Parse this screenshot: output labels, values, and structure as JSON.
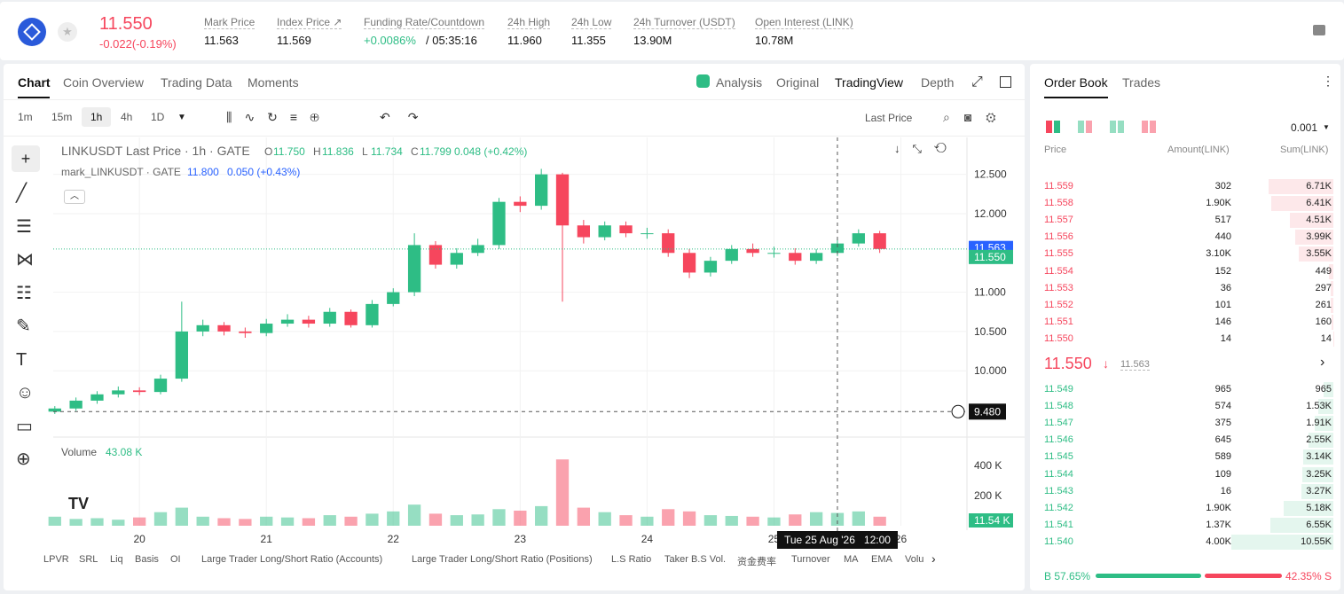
{
  "header": {
    "price": "11.550",
    "change": "-0.022(-0.19%)",
    "stats": [
      {
        "label": "Mark Price",
        "value": "11.563"
      },
      {
        "label": "Index Price ↗",
        "value": "11.569"
      },
      {
        "label": "Funding Rate/Countdown",
        "value": "+0.0086%",
        "extra": "/ 05:35:16"
      },
      {
        "label": "24h High",
        "value": "11.960"
      },
      {
        "label": "24h Low",
        "value": "11.355"
      },
      {
        "label": "24h Turnover (USDT)",
        "value": "13.90M"
      },
      {
        "label": "Open Interest (LINK)",
        "value": "10.78M"
      }
    ]
  },
  "tabs": [
    "Chart",
    "Coin Overview",
    "Trading Data",
    "Moments"
  ],
  "view_tabs": [
    "Analysis",
    "Original",
    "TradingView",
    "Depth"
  ],
  "intervals": [
    "1m",
    "15m",
    "1h",
    "4h",
    "1D"
  ],
  "price_type": "Last Price",
  "legend": {
    "title": "LINKUSDT Last Price · 1h · GATE",
    "ohlc": [
      {
        "key": "O",
        "value": "11.750"
      },
      {
        "key": "H",
        "value": "11.836"
      },
      {
        "key": "L",
        "value": "11.734"
      },
      {
        "key": "C",
        "value": "11.799"
      }
    ],
    "change": "0.048 (+0.42%)",
    "mark_title": "mark_LINKUSDT · GATE",
    "mark_value": "11.800",
    "mark_change": "0.050 (+0.43%)"
  },
  "price_chart": {
    "type": "candlestick",
    "up_color": "#2ebd85",
    "down_color": "#f6465d",
    "x": [
      8,
      12,
      16,
      20,
      24,
      28,
      32,
      36,
      40,
      44,
      48,
      52,
      56,
      60,
      64,
      68,
      72,
      76,
      80,
      84,
      88,
      92,
      96,
      100,
      104,
      108,
      112,
      116,
      120,
      124,
      128,
      132,
      136,
      140,
      144,
      148,
      152,
      156,
      160,
      164
    ],
    "open": [
      9.48,
      9.52,
      9.62,
      9.7,
      9.75,
      9.73,
      9.9,
      10.5,
      10.58,
      10.5,
      10.48,
      10.6,
      10.65,
      10.6,
      10.75,
      10.58,
      10.85,
      11.0,
      11.6,
      11.35,
      11.5,
      11.6,
      12.15,
      12.1,
      12.5,
      11.85,
      11.7,
      11.85,
      11.75,
      11.75,
      11.5,
      11.25,
      11.4,
      11.55,
      11.5,
      11.5,
      11.4,
      11.5,
      11.62,
      11.75
    ],
    "high": [
      9.55,
      9.66,
      9.74,
      9.8,
      9.79,
      9.95,
      10.88,
      10.65,
      10.62,
      10.55,
      10.66,
      10.72,
      10.7,
      10.8,
      10.78,
      10.9,
      11.05,
      11.75,
      11.65,
      11.56,
      11.68,
      12.2,
      12.22,
      12.57,
      12.52,
      11.92,
      11.9,
      11.9,
      11.82,
      11.8,
      11.55,
      11.45,
      11.6,
      11.62,
      11.58,
      11.56,
      11.55,
      11.68,
      11.8,
      11.78
    ],
    "low": [
      9.45,
      9.49,
      9.58,
      9.66,
      9.69,
      9.7,
      9.86,
      10.44,
      10.45,
      10.42,
      10.44,
      10.56,
      10.55,
      10.56,
      10.55,
      10.55,
      10.82,
      10.95,
      11.3,
      11.3,
      11.46,
      11.55,
      12.02,
      12.05,
      10.88,
      11.62,
      11.66,
      11.7,
      11.68,
      11.45,
      11.18,
      11.2,
      11.36,
      11.45,
      11.44,
      11.35,
      11.36,
      11.46,
      11.58,
      11.5
    ],
    "close": [
      9.52,
      9.62,
      9.7,
      9.75,
      9.73,
      9.9,
      10.5,
      10.58,
      10.5,
      10.48,
      10.6,
      10.65,
      10.6,
      10.75,
      10.58,
      10.85,
      11.0,
      11.6,
      11.35,
      11.5,
      11.6,
      12.15,
      12.1,
      12.5,
      11.85,
      11.7,
      11.85,
      11.75,
      11.75,
      11.5,
      11.25,
      11.4,
      11.55,
      11.5,
      11.5,
      11.4,
      11.5,
      11.62,
      11.75,
      11.55
    ],
    "volume": [
      60000,
      45000,
      50000,
      40000,
      55000,
      90000,
      120000,
      60000,
      50000,
      45000,
      60000,
      55000,
      50000,
      70000,
      60000,
      80000,
      95000,
      140000,
      80000,
      70000,
      75000,
      110000,
      100000,
      130000,
      440000,
      120000,
      90000,
      70000,
      60000,
      110000,
      95000,
      70000,
      65000,
      60000,
      55000,
      75000,
      90000,
      85000,
      95000,
      60000
    ],
    "xlim": [
      7.7,
      180.5
    ],
    "ylim": [
      9.19,
      12.97
    ],
    "yticks": [
      {
        "value": 10,
        "label": "10.000"
      },
      {
        "value": 10.5,
        "label": "10.500"
      },
      {
        "value": 11,
        "label": "11.000"
      },
      {
        "value": 12,
        "label": "12.000"
      },
      {
        "value": 12.5,
        "label": "12.500"
      }
    ],
    "xticks": [
      {
        "value": 24,
        "label": "20"
      },
      {
        "value": 48,
        "label": "21"
      },
      {
        "value": 72,
        "label": "22"
      },
      {
        "value": 96,
        "label": "23"
      },
      {
        "value": 120,
        "label": "24"
      },
      {
        "value": 144,
        "label": "25"
      },
      {
        "value": 168,
        "label": "26"
      }
    ],
    "mark_price": {
      "value": 11.563,
      "label": "11.563"
    },
    "last_price": {
      "value": 11.55,
      "label": "11.550"
    },
    "crosshair": {
      "x": 156,
      "y": 9.48,
      "y_label": "9.480",
      "x_label": "Tue 25 Aug '26   12:00"
    },
    "volume_label": "Volume",
    "volume_value": "43.08 K",
    "vol_ylim": [
      0,
      547000
    ],
    "vol_yticks": [
      {
        "value": 200000,
        "label": "200 K"
      },
      {
        "value": 400000,
        "label": "400 K"
      }
    ],
    "vol_last": {
      "value": 11540,
      "label": "11.54 K"
    }
  },
  "indicators": [
    "LPVR",
    "SRL",
    "Liq",
    "Basis",
    "OI",
    "Large Trader Long/Short Ratio (Accounts)",
    "Large Trader Long/Short Ratio (Positions)",
    "L.S Ratio",
    "Taker B.S Vol.",
    "资金费率",
    "Turnover",
    "MA",
    "EMA",
    "Volu"
  ],
  "order_book": {
    "tabs": [
      "Order Book",
      "Trades"
    ],
    "precision": "0.001",
    "columns": [
      "Price",
      "Amount(LINK)",
      "Sum(LINK)"
    ],
    "asks": [
      [
        "11.559",
        "302",
        "6.71K"
      ],
      [
        "11.558",
        "1.90K",
        "6.41K"
      ],
      [
        "11.557",
        "517",
        "4.51K"
      ],
      [
        "11.556",
        "440",
        "3.99K"
      ],
      [
        "11.555",
        "3.10K",
        "3.55K"
      ],
      [
        "11.554",
        "152",
        "449"
      ],
      [
        "11.553",
        "36",
        "297"
      ],
      [
        "11.552",
        "101",
        "261"
      ],
      [
        "11.551",
        "146",
        "160"
      ],
      [
        "11.550",
        "14",
        "14"
      ]
    ],
    "mid": "11.550",
    "mid_mark": "11.563",
    "bids": [
      [
        "11.549",
        "965",
        "965"
      ],
      [
        "11.548",
        "574",
        "1.53K"
      ],
      [
        "11.547",
        "375",
        "1.91K"
      ],
      [
        "11.546",
        "645",
        "2.55K"
      ],
      [
        "11.545",
        "589",
        "3.14K"
      ],
      [
        "11.544",
        "109",
        "3.25K"
      ],
      [
        "11.543",
        "16",
        "3.27K"
      ],
      [
        "11.542",
        "1.90K",
        "5.18K"
      ],
      [
        "11.541",
        "1.37K",
        "6.55K"
      ],
      [
        "11.540",
        "4.00K",
        "10.55K"
      ]
    ],
    "buy_pct": 57.65,
    "buy_label": "B 57.65%",
    "sell_label": "42.35% S"
  }
}
